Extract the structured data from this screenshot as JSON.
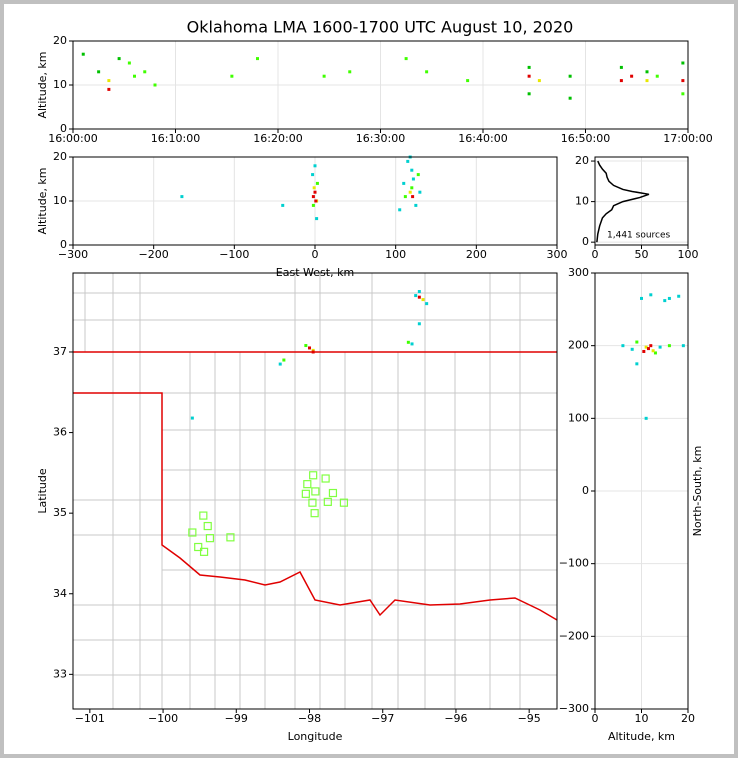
{
  "title": "Oklahoma LMA 1600-1700 UTC August 10, 2020",
  "chart_data": [
    {
      "type": "scatter",
      "ylabel": "Altitude, km",
      "xlim": [
        0,
        60
      ],
      "ylim": [
        0,
        20
      ],
      "xticks": [
        {
          "value": 0,
          "label": "16:00:00"
        },
        {
          "value": 10,
          "label": "16:10:00"
        },
        {
          "value": 20,
          "label": "16:20:00"
        },
        {
          "value": 30,
          "label": "16:30:00"
        },
        {
          "value": 40,
          "label": "16:40:00"
        },
        {
          "value": 50,
          "label": "16:50:00"
        },
        {
          "value": 60,
          "label": "17:00:00"
        }
      ],
      "yticks": [
        0,
        10,
        20
      ],
      "grid": true,
      "series": [
        {
          "color": "#00c000",
          "x": [
            1,
            2.5,
            4.5,
            44.5,
            44.5,
            48.5,
            48.5,
            53.5,
            56,
            59.5
          ],
          "values": [
            17,
            13,
            16,
            14,
            8,
            12,
            7,
            14,
            13,
            15
          ]
        },
        {
          "color": "#40ff00",
          "x": [
            5.5,
            6,
            7,
            8,
            15.5,
            18,
            24.5,
            27,
            32.5,
            34.5,
            38.5,
            57,
            59.5
          ],
          "values": [
            15,
            12,
            13,
            10,
            12,
            16,
            12,
            13,
            16,
            13,
            11,
            12,
            8
          ]
        },
        {
          "color": "#e8e800",
          "x": [
            3.5,
            45.5,
            56
          ],
          "values": [
            11,
            11,
            11
          ]
        },
        {
          "color": "#e00000",
          "x": [
            3.5,
            44.5,
            53.5,
            54.5,
            59.5
          ],
          "values": [
            9,
            12,
            11,
            12,
            11
          ]
        }
      ]
    },
    {
      "type": "scatter",
      "xlabel": "East-West, km",
      "ylabel": "Altitude, km",
      "xlim": [
        -300,
        300
      ],
      "ylim": [
        0,
        20
      ],
      "xticks": [
        {
          "value": -300,
          "label": "−300"
        },
        {
          "value": -200,
          "label": "−200"
        },
        {
          "value": -100,
          "label": "−100"
        },
        0,
        100,
        200,
        300
      ],
      "yticks": [
        0,
        10,
        20
      ],
      "grid": true,
      "series": [
        {
          "color": "#00d0d0",
          "x": [
            -165,
            -40,
            0,
            2,
            -3,
            115,
            120,
            125,
            110,
            130,
            105,
            118,
            122
          ],
          "values": [
            11,
            9,
            18,
            6,
            16,
            19,
            17,
            9,
            14,
            12,
            8,
            20,
            15
          ]
        },
        {
          "color": "#40ff00",
          "x": [
            -2,
            3,
            112,
            128,
            120
          ],
          "values": [
            9,
            14,
            11,
            16,
            13
          ]
        },
        {
          "color": "#e8e800",
          "x": [
            -1,
            2,
            118
          ],
          "values": [
            13,
            10,
            12
          ]
        },
        {
          "color": "#e00000",
          "x": [
            0,
            -2,
            1,
            121
          ],
          "values": [
            12,
            11,
            10,
            11
          ]
        }
      ]
    },
    {
      "type": "line",
      "annotation": "1,441 sources",
      "xlim": [
        0,
        100
      ],
      "ylim": [
        -0.7,
        21
      ],
      "xticks": [
        0,
        50,
        100
      ],
      "yticks": [
        0,
        10,
        20
      ],
      "grid": true,
      "color": "#000000",
      "x": [
        2,
        3,
        5,
        8,
        12,
        18,
        20,
        30,
        48,
        58,
        40,
        30,
        20,
        15,
        13,
        12,
        8,
        5,
        3
      ],
      "values": [
        0,
        2,
        4,
        6,
        7,
        8,
        9,
        10,
        11,
        11.8,
        12.5,
        13,
        14,
        15,
        16,
        17,
        18,
        19,
        20
      ]
    },
    {
      "type": "map",
      "xlabel": "Longitude",
      "ylabel": "Latitude",
      "xlim": [
        -101.23,
        -94.62
      ],
      "ylim": [
        32.57,
        37.98
      ],
      "xticks": [
        {
          "value": -101,
          "label": "−101"
        },
        {
          "value": -100,
          "label": "−100"
        },
        {
          "value": -99,
          "label": "−99"
        },
        {
          "value": -98,
          "label": "−98"
        },
        {
          "value": -97,
          "label": "−97"
        },
        {
          "value": -96,
          "label": "−96"
        },
        {
          "value": -95,
          "label": "−95"
        }
      ],
      "yticks": [
        33,
        34,
        35,
        36,
        37
      ],
      "series": [
        {
          "color": "#00d0d0",
          "x": [
            -96.5,
            -96.4,
            -96.6,
            -98.4,
            -99.6,
            -96.5,
            -96.55
          ],
          "values": [
            37.75,
            37.6,
            37.1,
            36.85,
            36.18,
            37.35,
            37.7
          ]
        },
        {
          "color": "#40ff00",
          "x": [
            -98.05,
            -96.65,
            -98.35
          ],
          "values": [
            37.08,
            37.12,
            36.9
          ]
        },
        {
          "color": "#e8e800",
          "x": [
            -96.45,
            -97.95
          ],
          "values": [
            37.65,
            37.02
          ]
        },
        {
          "color": "#e00000",
          "x": [
            -98.0,
            -96.5,
            -97.95
          ],
          "values": [
            37.05,
            37.68,
            37.0
          ]
        }
      ],
      "stations": {
        "color": "#80ff40",
        "x": [
          -97.95,
          -97.78,
          -98.03,
          -97.92,
          -98.05,
          -97.68,
          -97.96,
          -97.75,
          -97.53,
          -97.93,
          -99.45,
          -99.39,
          -99.6,
          -99.36,
          -99.08,
          -99.52,
          -99.44
        ],
        "values": [
          35.47,
          35.43,
          35.36,
          35.27,
          35.24,
          35.25,
          35.13,
          35.14,
          35.13,
          35.0,
          34.97,
          34.84,
          34.76,
          34.69,
          34.7,
          34.58,
          34.52
        ]
      }
    },
    {
      "type": "scatter",
      "xlabel": "Altitude, km",
      "ylabel": "North-South, km",
      "xlim": [
        0,
        20
      ],
      "ylim": [
        -300,
        300
      ],
      "xticks": [
        0,
        10,
        20
      ],
      "yticks": [
        {
          "value": -300,
          "label": "−300"
        },
        {
          "value": -200,
          "label": "−200"
        },
        {
          "value": -100,
          "label": "−100"
        },
        0,
        100,
        200,
        300
      ],
      "grid": true,
      "series": [
        {
          "color": "#00d0d0",
          "x": [
            10,
            12,
            15,
            18,
            6,
            8,
            14,
            11,
            9,
            16,
            19
          ],
          "values": [
            265,
            270,
            262,
            268,
            200,
            195,
            198,
            100,
            175,
            265,
            200
          ]
        },
        {
          "color": "#40ff00",
          "x": [
            9,
            13,
            16
          ],
          "values": [
            205,
            190,
            200
          ]
        },
        {
          "color": "#e8e800",
          "x": [
            11,
            12.5
          ],
          "values": [
            198,
            193
          ]
        },
        {
          "color": "#e00000",
          "x": [
            11.5,
            12,
            10.5
          ],
          "values": [
            196,
            200,
            192
          ]
        }
      ]
    }
  ]
}
